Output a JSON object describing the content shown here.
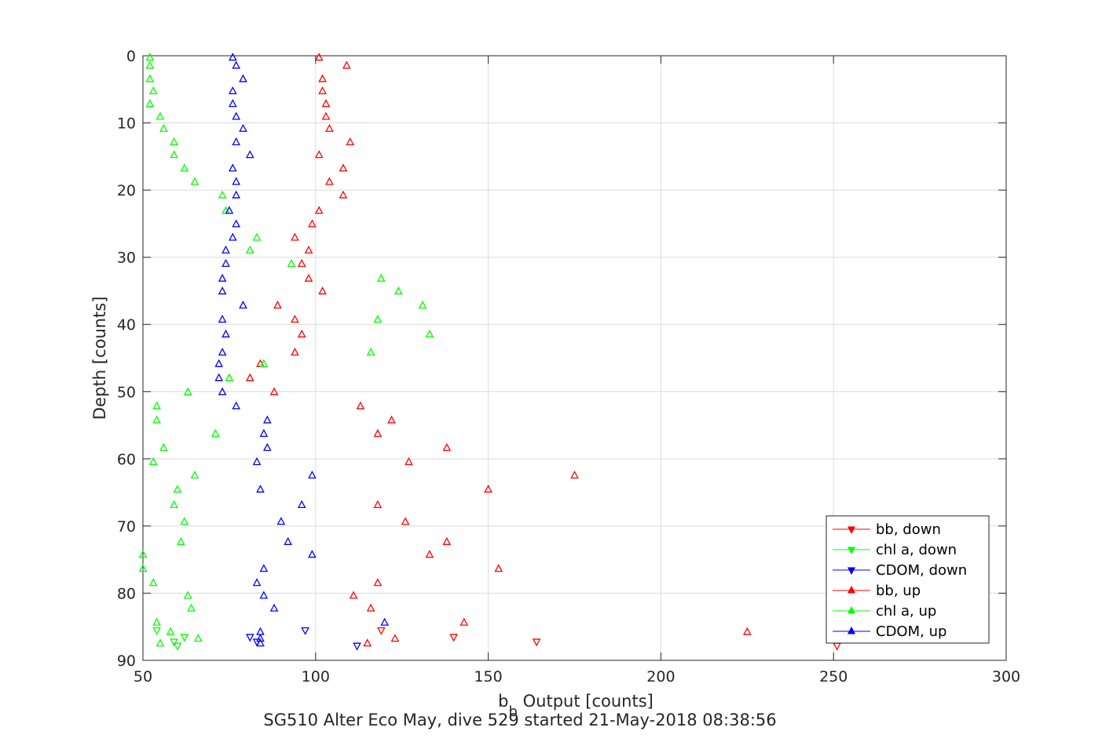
{
  "chart_data": {
    "type": "scatter",
    "title": "SG510 Alter Eco May, dive 529 started 21-May-2018 08:38:56",
    "xlabel_main": "b",
    "xlabel_sub": "b",
    "xlabel_rest": " Output [counts]",
    "ylabel": "Depth [counts]",
    "xlim": [
      50,
      300
    ],
    "ylim": [
      0,
      90
    ],
    "y_reversed": true,
    "grid": true,
    "legend_position": "lower-right",
    "xticks": [
      50,
      100,
      150,
      200,
      250,
      300
    ],
    "yticks": [
      0,
      10,
      20,
      30,
      40,
      50,
      60,
      70,
      80,
      90
    ],
    "series": [
      {
        "name": "bb, down",
        "color": "#ff0000",
        "marker": "triangle-down",
        "points": [
          [
            119,
            85.5
          ],
          [
            140,
            86.5
          ],
          [
            164,
            87.2
          ],
          [
            251,
            87.8
          ]
        ]
      },
      {
        "name": "chl a, down",
        "color": "#00ff00",
        "marker": "triangle-down",
        "points": [
          [
            54,
            85.5
          ],
          [
            62,
            86.5
          ],
          [
            59,
            87.2
          ],
          [
            60,
            87.8
          ]
        ]
      },
      {
        "name": "CDOM, down",
        "color": "#0000ff",
        "marker": "triangle-down",
        "points": [
          [
            97,
            85.5
          ],
          [
            81,
            86.5
          ],
          [
            83,
            87.2
          ],
          [
            112,
            87.8
          ]
        ]
      },
      {
        "name": "bb, up",
        "color": "#ff0000",
        "marker": "triangle-up",
        "points": [
          [
            101,
            0.3
          ],
          [
            109,
            1.5
          ],
          [
            102,
            3.5
          ],
          [
            102,
            5.3
          ],
          [
            103,
            7.2
          ],
          [
            103,
            9.1
          ],
          [
            104,
            10.9
          ],
          [
            110,
            12.9
          ],
          [
            101,
            14.8
          ],
          [
            108,
            16.8
          ],
          [
            104,
            18.8
          ],
          [
            108,
            20.8
          ],
          [
            101,
            23.1
          ],
          [
            99,
            25.1
          ],
          [
            94,
            27.1
          ],
          [
            98,
            29.0
          ],
          [
            96,
            31.0
          ],
          [
            98,
            33.2
          ],
          [
            102,
            35.1
          ],
          [
            89,
            37.2
          ],
          [
            94,
            39.3
          ],
          [
            96,
            41.5
          ],
          [
            94,
            44.2
          ],
          [
            84,
            45.9
          ],
          [
            81,
            48.0
          ],
          [
            88,
            50.1
          ],
          [
            113,
            52.2
          ],
          [
            122,
            54.3
          ],
          [
            118,
            56.3
          ],
          [
            138,
            58.4
          ],
          [
            127,
            60.5
          ],
          [
            175,
            62.5
          ],
          [
            150,
            64.6
          ],
          [
            118,
            66.9
          ],
          [
            126,
            69.4
          ],
          [
            138,
            72.4
          ],
          [
            133,
            74.3
          ],
          [
            153,
            76.4
          ],
          [
            118,
            78.5
          ],
          [
            111,
            80.4
          ],
          [
            116,
            82.3
          ],
          [
            143,
            84.4
          ],
          [
            225,
            85.8
          ],
          [
            123,
            86.8
          ],
          [
            115,
            87.5
          ]
        ]
      },
      {
        "name": "chl a, up",
        "color": "#00ff00",
        "marker": "triangle-up",
        "points": [
          [
            52,
            0.3
          ],
          [
            52,
            1.5
          ],
          [
            52,
            3.5
          ],
          [
            53,
            5.3
          ],
          [
            52,
            7.2
          ],
          [
            55,
            9.1
          ],
          [
            56,
            10.9
          ],
          [
            59,
            12.9
          ],
          [
            59,
            14.8
          ],
          [
            62,
            16.8
          ],
          [
            65,
            18.8
          ],
          [
            73,
            20.8
          ],
          [
            74,
            23.1
          ],
          [
            83,
            27.1
          ],
          [
            81,
            29.0
          ],
          [
            93,
            31.0
          ],
          [
            119,
            33.2
          ],
          [
            124,
            35.1
          ],
          [
            131,
            37.2
          ],
          [
            118,
            39.3
          ],
          [
            133,
            41.5
          ],
          [
            116,
            44.2
          ],
          [
            85,
            45.9
          ],
          [
            75,
            48.0
          ],
          [
            63,
            50.1
          ],
          [
            54,
            52.2
          ],
          [
            54,
            54.3
          ],
          [
            71,
            56.3
          ],
          [
            56,
            58.4
          ],
          [
            53,
            60.5
          ],
          [
            65,
            62.5
          ],
          [
            60,
            64.6
          ],
          [
            59,
            66.9
          ],
          [
            62,
            69.4
          ],
          [
            61,
            72.4
          ],
          [
            50,
            74.3
          ],
          [
            50,
            76.4
          ],
          [
            53,
            78.5
          ],
          [
            63,
            80.4
          ],
          [
            64,
            82.3
          ],
          [
            54,
            84.4
          ],
          [
            58,
            85.8
          ],
          [
            66,
            86.8
          ],
          [
            55,
            87.5
          ]
        ]
      },
      {
        "name": "CDOM, up",
        "color": "#0000ff",
        "marker": "triangle-up",
        "points": [
          [
            76,
            0.3
          ],
          [
            77,
            1.5
          ],
          [
            79,
            3.5
          ],
          [
            76,
            5.3
          ],
          [
            76,
            7.2
          ],
          [
            77,
            9.1
          ],
          [
            79,
            10.9
          ],
          [
            77,
            12.9
          ],
          [
            81,
            14.8
          ],
          [
            76,
            16.8
          ],
          [
            77,
            18.8
          ],
          [
            77,
            20.8
          ],
          [
            75,
            23.1
          ],
          [
            77,
            25.1
          ],
          [
            76,
            27.1
          ],
          [
            74,
            29.0
          ],
          [
            74,
            31.0
          ],
          [
            73,
            33.2
          ],
          [
            73,
            35.1
          ],
          [
            79,
            37.2
          ],
          [
            73,
            39.3
          ],
          [
            74,
            41.5
          ],
          [
            73,
            44.2
          ],
          [
            72,
            45.9
          ],
          [
            72,
            48.0
          ],
          [
            73,
            50.1
          ],
          [
            77,
            52.2
          ],
          [
            86,
            54.3
          ],
          [
            85,
            56.3
          ],
          [
            86,
            58.4
          ],
          [
            83,
            60.5
          ],
          [
            99,
            62.5
          ],
          [
            84,
            64.6
          ],
          [
            96,
            66.9
          ],
          [
            90,
            69.4
          ],
          [
            92,
            72.4
          ],
          [
            99,
            74.3
          ],
          [
            85,
            76.4
          ],
          [
            83,
            78.5
          ],
          [
            85,
            80.4
          ],
          [
            88,
            82.3
          ],
          [
            120,
            84.4
          ],
          [
            84,
            85.8
          ],
          [
            84,
            86.8
          ],
          [
            84,
            87.5
          ]
        ]
      }
    ]
  }
}
